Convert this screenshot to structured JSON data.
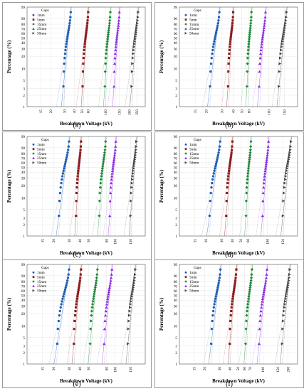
{
  "figure": {
    "panels": [
      {
        "caption": "(a)"
      },
      {
        "caption": "(b)"
      },
      {
        "caption": "(c)"
      },
      {
        "caption": "(d)"
      },
      {
        "caption": "(e)"
      },
      {
        "caption": "(f)"
      }
    ]
  },
  "chart_data": [
    {
      "type": "scatter",
      "xscale": "log",
      "yscale": "weibull-probability",
      "xlabel": "Breakdown Voltage  (kV)",
      "ylabel": "Percentage  (%)",
      "legend_title": "Gaps",
      "legend_position": "top-left",
      "xlim": [
        10,
        320
      ],
      "ylim": [
        1,
        99
      ],
      "xticks": [
        15,
        20,
        30,
        40,
        50,
        60,
        100,
        150,
        200,
        250
      ],
      "yticks": [
        1,
        2,
        3,
        5,
        10,
        20,
        30,
        40,
        50,
        60,
        70,
        80,
        90,
        99
      ],
      "series": [
        {
          "name": "1mm",
          "color": "#1f5fb4",
          "marker": "circle",
          "range": [
            29,
            36
          ]
        },
        {
          "name": "5mm",
          "color": "#8b1a1a",
          "marker": "square",
          "range": [
            51,
            60
          ]
        },
        {
          "name": "15mm",
          "color": "#1f8a3a",
          "marker": "diamond",
          "range": [
            98,
            115
          ]
        },
        {
          "name": "25mm",
          "color": "#8a2be2",
          "marker": "triangle",
          "range": [
            128,
            150
          ]
        },
        {
          "name": "50mm",
          "color": "#444444",
          "marker": "triangle-right",
          "range": [
            215,
            260
          ]
        }
      ]
    },
    {
      "type": "scatter",
      "xscale": "log",
      "yscale": "weibull-probability",
      "xlabel": "Breakdown Voltage  (kV)",
      "ylabel": "Percentage  (%)",
      "legend_title": "Gaps",
      "legend_position": "top-left",
      "xlim": [
        10,
        210
      ],
      "ylim": [
        1,
        99
      ],
      "xticks": [
        15,
        20,
        30,
        40,
        50,
        60,
        100,
        150
      ],
      "yticks": [
        1,
        2,
        3,
        5,
        10,
        20,
        30,
        40,
        50,
        60,
        70,
        80,
        90,
        99
      ],
      "series": [
        {
          "name": "1mm",
          "color": "#1f5fb4",
          "marker": "circle",
          "range": [
            22,
            28
          ]
        },
        {
          "name": "5mm",
          "color": "#8b1a1a",
          "marker": "square",
          "range": [
            35,
            40
          ]
        },
        {
          "name": "15mm",
          "color": "#1f8a3a",
          "marker": "diamond",
          "range": [
            57,
            64
          ]
        },
        {
          "name": "25mm",
          "color": "#8a2be2",
          "marker": "triangle",
          "range": [
            78,
            92
          ]
        },
        {
          "name": "50mm",
          "color": "#444444",
          "marker": "triangle-right",
          "range": [
            130,
            158
          ]
        }
      ]
    },
    {
      "type": "scatter",
      "xscale": "log",
      "yscale": "weibull-probability",
      "xlabel": "Breakdown Voltage  (kV)",
      "ylabel": "Percentage  (%)",
      "legend_title": "Gaps",
      "legend_position": "top-left",
      "xlim": [
        10,
        220
      ],
      "ylim": [
        1,
        99
      ],
      "xticks": [
        15,
        20,
        30,
        40,
        50,
        80,
        100,
        150
      ],
      "yticks": [
        1,
        2,
        3,
        5,
        10,
        20,
        30,
        40,
        50,
        60,
        70,
        80,
        90,
        99
      ],
      "series": [
        {
          "name": "1mm",
          "color": "#1f5fb4",
          "marker": "circle",
          "range": [
            23,
            30
          ]
        },
        {
          "name": "5mm",
          "color": "#8b1a1a",
          "marker": "square",
          "range": [
            36,
            41
          ]
        },
        {
          "name": "15mm",
          "color": "#1f8a3a",
          "marker": "diamond",
          "range": [
            66,
            78
          ]
        },
        {
          "name": "25mm",
          "color": "#8a2be2",
          "marker": "triangle",
          "range": [
            87,
            102
          ]
        },
        {
          "name": "50mm",
          "color": "#444444",
          "marker": "triangle-right",
          "range": [
            150,
            175
          ]
        }
      ]
    },
    {
      "type": "scatter",
      "xscale": "log",
      "yscale": "weibull-probability",
      "xlabel": "Breakdown Voltage  (kV)",
      "ylabel": "Percentage  (%)",
      "legend_title": "Gaps",
      "legend_position": "top-left",
      "xlim": [
        10,
        220
      ],
      "ylim": [
        1,
        99
      ],
      "xticks": [
        15,
        20,
        30,
        40,
        50,
        60,
        100,
        150
      ],
      "yticks": [
        1,
        2,
        3,
        5,
        10,
        20,
        30,
        40,
        50,
        60,
        70,
        80,
        90,
        99
      ],
      "series": [
        {
          "name": "1mm",
          "color": "#1f5fb4",
          "marker": "circle",
          "range": [
            22,
            29
          ]
        },
        {
          "name": "5mm",
          "color": "#8b1a1a",
          "marker": "square",
          "range": [
            34,
            40
          ]
        },
        {
          "name": "15mm",
          "color": "#1f8a3a",
          "marker": "diamond",
          "range": [
            57,
            65
          ]
        },
        {
          "name": "25mm",
          "color": "#8a2be2",
          "marker": "triangle",
          "range": [
            88,
            103
          ]
        },
        {
          "name": "50mm",
          "color": "#444444",
          "marker": "triangle-right",
          "range": [
            150,
            185
          ]
        }
      ]
    },
    {
      "type": "scatter",
      "xscale": "log",
      "yscale": "weibull-probability",
      "xlabel": "Breakdown Voltage  (kV)",
      "ylabel": "Percentage  (%)",
      "legend_title": "Gaps",
      "legend_position": "top-left",
      "xlim": [
        10,
        220
      ],
      "ylim": [
        1,
        99
      ],
      "xticks": [
        15,
        20,
        30,
        40,
        50,
        80,
        100,
        150
      ],
      "yticks": [
        1,
        2,
        3,
        5,
        10,
        20,
        30,
        40,
        50,
        60,
        70,
        80,
        90,
        99
      ],
      "series": [
        {
          "name": "1mm",
          "color": "#1f5fb4",
          "marker": "circle",
          "range": [
            22,
            30
          ]
        },
        {
          "name": "5mm",
          "color": "#8b1a1a",
          "marker": "square",
          "range": [
            34,
            41
          ]
        },
        {
          "name": "15mm",
          "color": "#1f8a3a",
          "marker": "diamond",
          "range": [
            52,
            63
          ]
        },
        {
          "name": "25mm",
          "color": "#8a2be2",
          "marker": "triangle",
          "range": [
            75,
            92
          ]
        },
        {
          "name": "50mm",
          "color": "#444444",
          "marker": "triangle-right",
          "range": [
            140,
            170
          ]
        }
      ]
    },
    {
      "type": "scatter",
      "xscale": "log",
      "yscale": "weibull-probability",
      "xlabel": "Breakdown Voltage  (kV)",
      "ylabel": "Percentage  (%)",
      "legend_title": "Gaps",
      "legend_position": "top-left",
      "xlim": [
        10,
        260
      ],
      "ylim": [
        1,
        99
      ],
      "xticks": [
        15,
        20,
        30,
        40,
        50,
        60,
        70,
        100,
        150,
        200
      ],
      "yticks": [
        1,
        2,
        3,
        5,
        10,
        20,
        30,
        40,
        50,
        60,
        70,
        80,
        90,
        99
      ],
      "series": [
        {
          "name": "1mm",
          "color": "#1f5fb4",
          "marker": "circle",
          "range": [
            24,
            31
          ]
        },
        {
          "name": "5mm",
          "color": "#8b1a1a",
          "marker": "square",
          "range": [
            40,
            48
          ]
        },
        {
          "name": "15mm",
          "color": "#1f8a3a",
          "marker": "diamond",
          "range": [
            62,
            74
          ]
        },
        {
          "name": "25mm",
          "color": "#8a2be2",
          "marker": "triangle",
          "range": [
            90,
            112
          ]
        },
        {
          "name": "50mm",
          "color": "#444444",
          "marker": "triangle-right",
          "range": [
            170,
            210
          ]
        }
      ]
    }
  ]
}
